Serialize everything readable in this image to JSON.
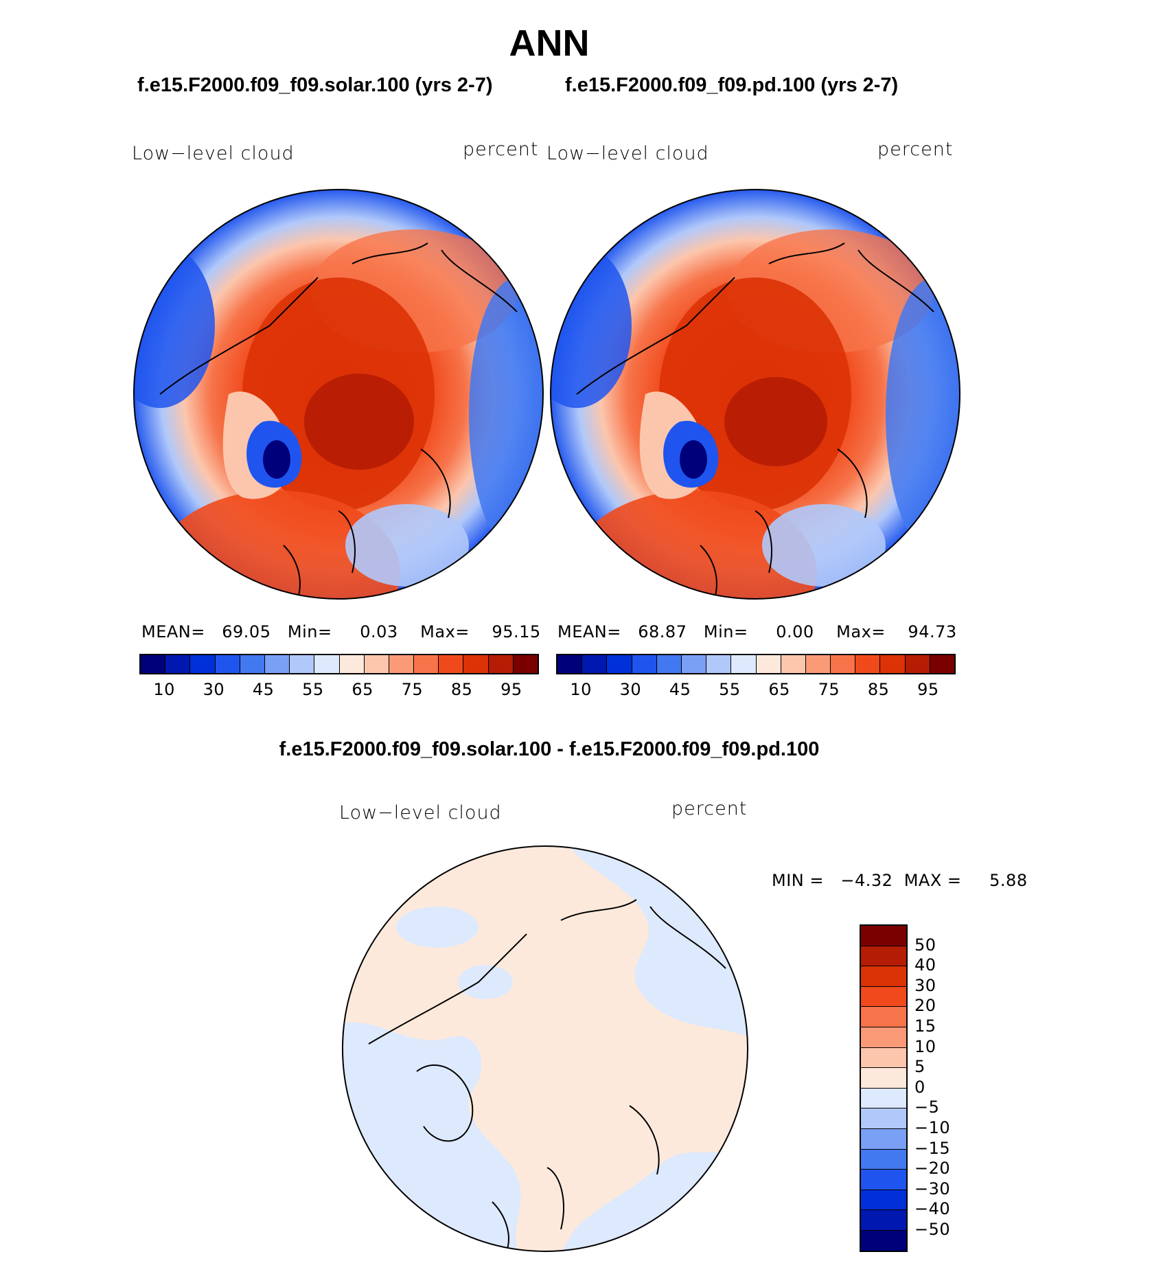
{
  "figure": {
    "title": "ANN",
    "diff_title": "f.e15.F2000.f09_f09.solar.100 - f.e15.F2000.f09_f09.pd.100"
  },
  "panels": [
    {
      "run_title": "f.e15.F2000.f09_f09.solar.100 (yrs 2-7)",
      "variable": "Low−level cloud",
      "units": "percent",
      "mean_label": "MEAN=",
      "mean_value": "69.05",
      "min_label": "Min=",
      "min_value": "0.03",
      "max_label": "Max=",
      "max_value": "95.15"
    },
    {
      "run_title": "f.e15.F2000.f09_f09.pd.100 (yrs 2-7)",
      "variable": "Low−level cloud",
      "units": "percent",
      "mean_label": "MEAN=",
      "mean_value": "68.87",
      "min_label": "Min=",
      "min_value": "0.00",
      "max_label": "Max=",
      "max_value": "94.73"
    }
  ],
  "diff_panel": {
    "variable": "Low−level cloud",
    "units": "percent",
    "min_label": "MIN =",
    "min_value": "−4.32",
    "max_label": "MAX =",
    "max_value": "5.88"
  },
  "colorbar_abs": {
    "tick_labels": [
      "10",
      "30",
      "45",
      "55",
      "65",
      "75",
      "85",
      "95"
    ],
    "colors": [
      "#00007a",
      "#0018b0",
      "#0030d8",
      "#1f55ee",
      "#4278f0",
      "#7aa0f5",
      "#b0c8fa",
      "#dde9fc",
      "#fde9dc",
      "#fcc6ad",
      "#fa9a76",
      "#f7744a",
      "#f04a1c",
      "#db3206",
      "#b51c04",
      "#7a0000"
    ]
  },
  "colorbar_diff": {
    "tick_labels": [
      "50",
      "40",
      "30",
      "20",
      "15",
      "10",
      "5",
      "0",
      "−5",
      "−10",
      "−15",
      "−20",
      "−30",
      "−40",
      "−50"
    ],
    "colors": [
      "#7a0000",
      "#b51c04",
      "#db3206",
      "#f04a1c",
      "#f7744a",
      "#fa9a76",
      "#fcc6ad",
      "#fde9dc",
      "#dde9fc",
      "#b0c8fa",
      "#7aa0f5",
      "#4278f0",
      "#1f55ee",
      "#0030d8",
      "#0018b0",
      "#00007a"
    ]
  },
  "chart_data": [
    {
      "type": "heatmap",
      "projection": "north-polar-stereographic",
      "title": "f.e15.F2000.f09_f09.solar.100 (yrs 2-7)",
      "field": "Low-level cloud",
      "units": "percent",
      "mean": 69.05,
      "min": 0.03,
      "max": 95.15,
      "contour_levels": [
        5,
        10,
        20,
        30,
        40,
        45,
        50,
        55,
        60,
        65,
        70,
        75,
        80,
        85,
        90,
        95
      ]
    },
    {
      "type": "heatmap",
      "projection": "north-polar-stereographic",
      "title": "f.e15.F2000.f09_f09.pd.100 (yrs 2-7)",
      "field": "Low-level cloud",
      "units": "percent",
      "mean": 68.87,
      "min": 0.0,
      "max": 94.73,
      "contour_levels": [
        5,
        10,
        20,
        30,
        40,
        45,
        50,
        55,
        60,
        65,
        70,
        75,
        80,
        85,
        90,
        95
      ]
    },
    {
      "type": "heatmap",
      "projection": "north-polar-stereographic",
      "title": "f.e15.F2000.f09_f09.solar.100 - f.e15.F2000.f09_f09.pd.100",
      "field": "Low-level cloud",
      "units": "percent",
      "min": -4.32,
      "max": 5.88,
      "contour_levels": [
        -50,
        -40,
        -30,
        -20,
        -15,
        -10,
        -5,
        0,
        5,
        10,
        15,
        20,
        30,
        40,
        50
      ]
    }
  ]
}
